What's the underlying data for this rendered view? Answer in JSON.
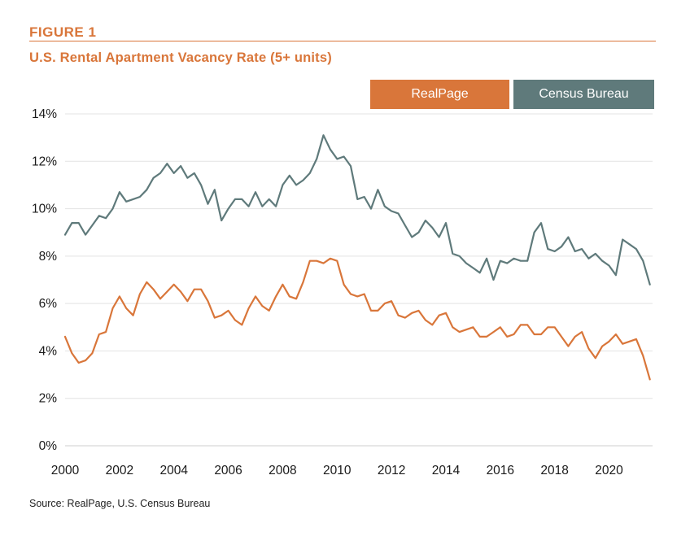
{
  "figure": {
    "label": "FIGURE 1",
    "title": "U.S. Rental Apartment Vacancy Rate (5+ units)",
    "source": "Source: RealPage, U.S. Census Bureau",
    "accent_color": "#d9763a"
  },
  "legend": [
    {
      "name": "RealPage",
      "color": "#d9763a"
    },
    {
      "name": "Census Bureau",
      "color": "#5f7a7b"
    }
  ],
  "chart_data": {
    "type": "line",
    "title": "U.S. Rental Apartment Vacancy Rate (5+ units)",
    "xlabel": "",
    "ylabel": "",
    "xlim": [
      2000,
      2021.6
    ],
    "ylim": [
      0,
      14
    ],
    "grid": true,
    "legend_position": "top-right",
    "x_tick_labels": [
      "2000",
      "2002",
      "2004",
      "2006",
      "2008",
      "2010",
      "2012",
      "2014",
      "2016",
      "2018",
      "2020"
    ],
    "x_ticks": [
      2000,
      2002,
      2004,
      2006,
      2008,
      2010,
      2012,
      2014,
      2016,
      2018,
      2020
    ],
    "y_tick_labels": [
      "0%",
      "2%",
      "4%",
      "6%",
      "8%",
      "10%",
      "12%",
      "14%"
    ],
    "y_ticks": [
      0,
      2,
      4,
      6,
      8,
      10,
      12,
      14
    ],
    "series": [
      {
        "name": "RealPage",
        "color": "#d9763a",
        "x": [
          2000.0,
          2000.25,
          2000.5,
          2000.75,
          2001.0,
          2001.25,
          2001.5,
          2001.75,
          2002.0,
          2002.25,
          2002.5,
          2002.75,
          2003.0,
          2003.25,
          2003.5,
          2003.75,
          2004.0,
          2004.25,
          2004.5,
          2004.75,
          2005.0,
          2005.25,
          2005.5,
          2005.75,
          2006.0,
          2006.25,
          2006.5,
          2006.75,
          2007.0,
          2007.25,
          2007.5,
          2007.75,
          2008.0,
          2008.25,
          2008.5,
          2008.75,
          2009.0,
          2009.25,
          2009.5,
          2009.75,
          2010.0,
          2010.25,
          2010.5,
          2010.75,
          2011.0,
          2011.25,
          2011.5,
          2011.75,
          2012.0,
          2012.25,
          2012.5,
          2012.75,
          2013.0,
          2013.25,
          2013.5,
          2013.75,
          2014.0,
          2014.25,
          2014.5,
          2014.75,
          2015.0,
          2015.25,
          2015.5,
          2015.75,
          2016.0,
          2016.25,
          2016.5,
          2016.75,
          2017.0,
          2017.25,
          2017.5,
          2017.75,
          2018.0,
          2018.25,
          2018.5,
          2018.75,
          2019.0,
          2019.25,
          2019.5,
          2019.75,
          2020.0,
          2020.25,
          2020.5,
          2020.75,
          2021.0,
          2021.25,
          2021.5
        ],
        "values": [
          4.6,
          3.9,
          3.5,
          3.6,
          3.9,
          4.7,
          4.8,
          5.8,
          6.3,
          5.8,
          5.5,
          6.4,
          6.9,
          6.6,
          6.2,
          6.5,
          6.8,
          6.5,
          6.1,
          6.6,
          6.6,
          6.1,
          5.4,
          5.5,
          5.7,
          5.3,
          5.1,
          5.8,
          6.3,
          5.9,
          5.7,
          6.3,
          6.8,
          6.3,
          6.2,
          6.9,
          7.8,
          7.8,
          7.7,
          7.9,
          7.8,
          6.8,
          6.4,
          6.3,
          6.4,
          5.7,
          5.7,
          6.0,
          6.1,
          5.5,
          5.4,
          5.6,
          5.7,
          5.3,
          5.1,
          5.5,
          5.6,
          5.0,
          4.8,
          4.9,
          5.0,
          4.6,
          4.6,
          4.8,
          5.0,
          4.6,
          4.7,
          5.1,
          5.1,
          4.7,
          4.7,
          5.0,
          5.0,
          4.6,
          4.2,
          4.6,
          4.8,
          4.1,
          3.7,
          4.2,
          4.4,
          4.7,
          4.3,
          4.4,
          4.5,
          3.8,
          2.8
        ]
      },
      {
        "name": "Census Bureau",
        "color": "#5f7a7b",
        "x": [
          2000.0,
          2000.25,
          2000.5,
          2000.75,
          2001.0,
          2001.25,
          2001.5,
          2001.75,
          2002.0,
          2002.25,
          2002.5,
          2002.75,
          2003.0,
          2003.25,
          2003.5,
          2003.75,
          2004.0,
          2004.25,
          2004.5,
          2004.75,
          2005.0,
          2005.25,
          2005.5,
          2005.75,
          2006.0,
          2006.25,
          2006.5,
          2006.75,
          2007.0,
          2007.25,
          2007.5,
          2007.75,
          2008.0,
          2008.25,
          2008.5,
          2008.75,
          2009.0,
          2009.25,
          2009.5,
          2009.75,
          2010.0,
          2010.25,
          2010.5,
          2010.75,
          2011.0,
          2011.25,
          2011.5,
          2011.75,
          2012.0,
          2012.25,
          2012.5,
          2012.75,
          2013.0,
          2013.25,
          2013.5,
          2013.75,
          2014.0,
          2014.25,
          2014.5,
          2014.75,
          2015.0,
          2015.25,
          2015.5,
          2015.75,
          2016.0,
          2016.25,
          2016.5,
          2016.75,
          2017.0,
          2017.25,
          2017.5,
          2017.75,
          2018.0,
          2018.25,
          2018.5,
          2018.75,
          2019.0,
          2019.25,
          2019.5,
          2019.75,
          2020.0,
          2020.25,
          2020.5,
          2020.75,
          2021.0,
          2021.25,
          2021.5
        ],
        "values": [
          8.9,
          9.4,
          9.4,
          8.9,
          9.3,
          9.7,
          9.6,
          10.0,
          10.7,
          10.3,
          10.4,
          10.5,
          10.8,
          11.3,
          11.5,
          11.9,
          11.5,
          11.8,
          11.3,
          11.5,
          11.0,
          10.2,
          10.8,
          9.5,
          10.0,
          10.4,
          10.4,
          10.1,
          10.7,
          10.1,
          10.4,
          10.1,
          11.0,
          11.4,
          11.0,
          11.2,
          11.5,
          12.1,
          13.1,
          12.5,
          12.1,
          12.2,
          11.8,
          10.4,
          10.5,
          10.0,
          10.8,
          10.1,
          9.9,
          9.8,
          9.3,
          8.8,
          9.0,
          9.5,
          9.2,
          8.8,
          9.4,
          8.1,
          8.0,
          7.7,
          7.5,
          7.3,
          7.9,
          7.0,
          7.8,
          7.7,
          7.9,
          7.8,
          7.8,
          9.0,
          9.4,
          8.3,
          8.2,
          8.4,
          8.8,
          8.2,
          8.3,
          7.9,
          8.1,
          7.8,
          7.6,
          7.2,
          8.7,
          8.5,
          8.3,
          7.8,
          6.8
        ]
      }
    ]
  }
}
